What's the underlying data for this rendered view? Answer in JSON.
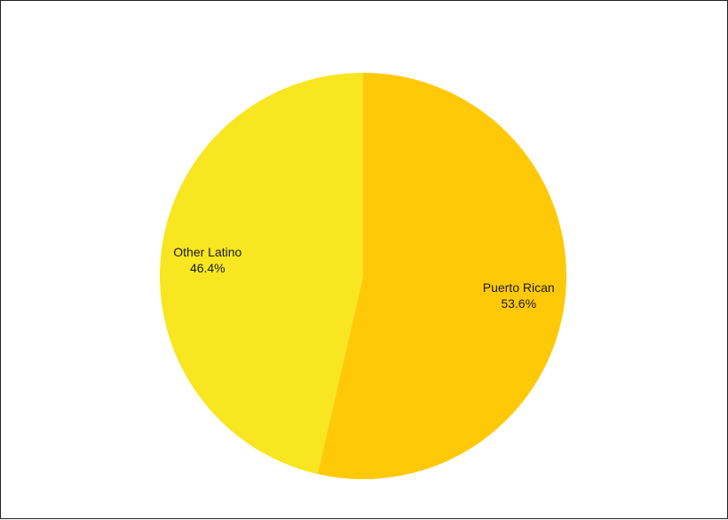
{
  "chart_data": {
    "type": "pie",
    "title": "",
    "start_angle_deg": 0,
    "direction": "clockwise",
    "slices": [
      {
        "label": "Puerto Rican",
        "value": 53.6,
        "value_label": "53.6%",
        "color": "#FFC907"
      },
      {
        "label": "Other Latino",
        "value": 46.4,
        "value_label": "46.4%",
        "color": "#F7E620"
      }
    ]
  }
}
